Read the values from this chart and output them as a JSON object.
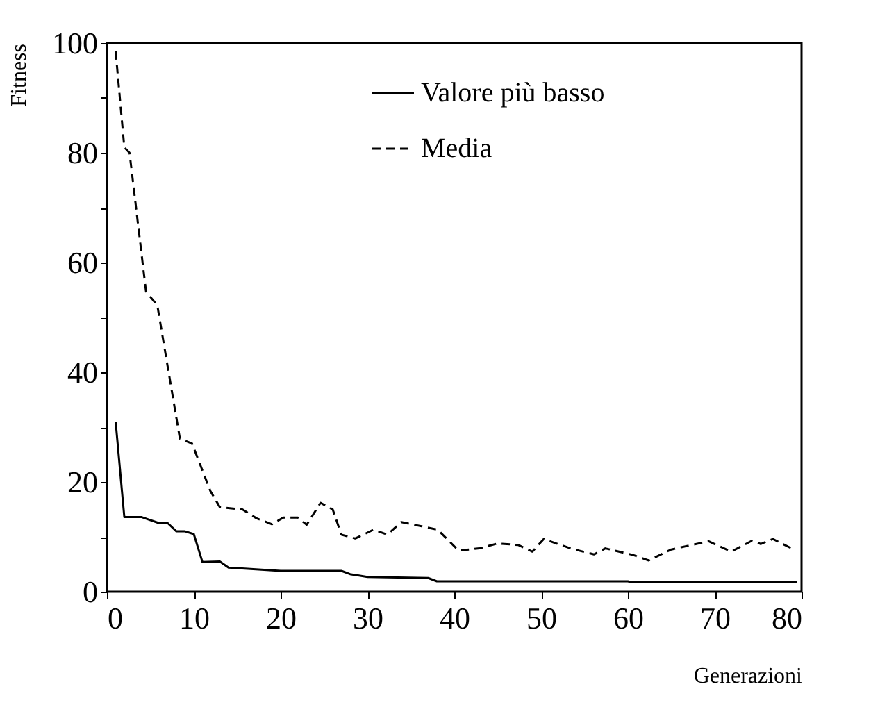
{
  "chart_data": {
    "type": "line",
    "xlabel": "Generazioni",
    "ylabel": "Fitness",
    "xlim": [
      0,
      80
    ],
    "xticks": [
      0,
      10,
      20,
      30,
      40,
      50,
      60,
      70,
      80
    ],
    "ylim": [
      0,
      100
    ],
    "yticks": [
      0,
      {
        "value": 10,
        "label": null
      },
      20,
      {
        "value": 30,
        "label": null
      },
      40,
      {
        "value": 50,
        "label": null
      },
      60,
      {
        "value": 70,
        "label": null
      },
      80,
      {
        "value": 90,
        "label": null
      },
      100
    ],
    "grid": false,
    "legend": "top right",
    "series": [
      {
        "name": "Valore più basso",
        "color": "#000000",
        "line_style": "solid",
        "x": [
          1,
          2,
          4,
          6,
          7,
          8,
          9,
          10,
          11,
          13,
          14,
          20,
          27,
          28,
          30,
          37,
          38,
          60,
          60.5,
          79.5
        ],
        "values": [
          31,
          13.6,
          13.6,
          12.5,
          12.5,
          11,
          11,
          10.5,
          5.4,
          5.5,
          4.4,
          3.8,
          3.8,
          3.2,
          2.7,
          2.5,
          1.9,
          1.9,
          1.7,
          1.7
        ]
      },
      {
        "name": "Media",
        "color": "#000000",
        "line_style": "dashed",
        "x": [
          1,
          2,
          2.6,
          4.5,
          5.8,
          8.4,
          9.8,
          11.9,
          13,
          15.6,
          17.2,
          19,
          20.3,
          22,
          23,
          24.6,
          26,
          27,
          28.6,
          30.7,
          32.3,
          33.9,
          38.1,
          40.5,
          42.9,
          45,
          47.4,
          49,
          50.3,
          53.4,
          56.1,
          57.4,
          60.6,
          62.4,
          65,
          69.3,
          71.9,
          74.3,
          75.3,
          76.7,
          79.1
        ],
        "values": [
          98.5,
          81,
          80,
          54.7,
          52.2,
          27.9,
          27,
          18.4,
          15.4,
          15,
          13.4,
          12.3,
          13.5,
          13.5,
          12.2,
          16.2,
          15,
          10.4,
          9.7,
          11.3,
          10.4,
          12.7,
          11.3,
          7.5,
          7.9,
          8.8,
          8.5,
          7.3,
          9.6,
          7.9,
          6.8,
          7.9,
          6.7,
          5.7,
          7.7,
          9.2,
          7.3,
          9.3,
          8.7,
          9.6,
          7.7
        ]
      }
    ]
  }
}
